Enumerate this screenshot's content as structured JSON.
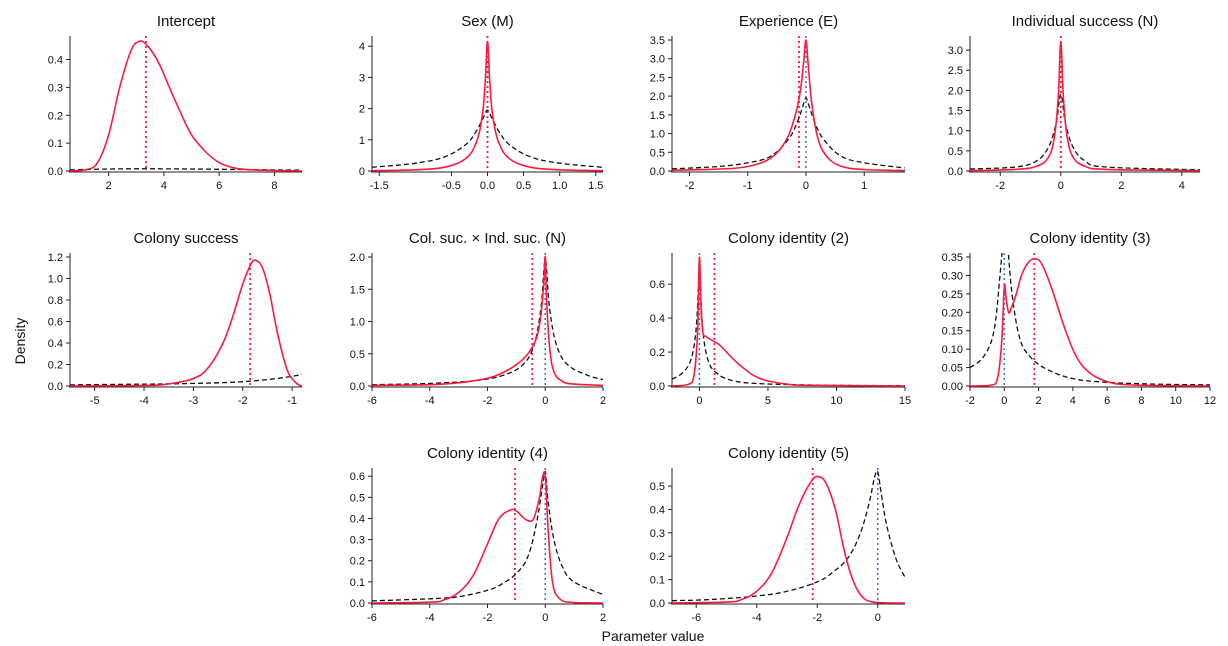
{
  "figure": {
    "ylabel": "Density",
    "xlabel": "Parameter value",
    "colors": {
      "posterior": "#ff1a3d",
      "prior": "#111111",
      "posterior_mean": "#ff1a3d",
      "zero_line": "#4a6fd1"
    }
  },
  "chart_data": [
    {
      "type": "line",
      "title": "Intercept",
      "xlim": [
        0.6,
        9.0
      ],
      "ylim": [
        0,
        0.47
      ],
      "xticks": [
        2,
        4,
        6,
        8
      ],
      "yticks": [
        0.0,
        0.1,
        0.2,
        0.3,
        0.4
      ],
      "xtick_labels": [
        "2",
        "4",
        "6",
        "8"
      ],
      "ytick_labels": [
        "0.0",
        "0.1",
        "0.2",
        "0.3",
        "0.4"
      ],
      "posterior_mean": 3.35,
      "zero_line": null,
      "series": [
        {
          "style": "solid",
          "color": "#ff1a3d",
          "x": [
            0.6,
            1.2,
            1.6,
            2.0,
            2.4,
            2.8,
            3.1,
            3.4,
            3.8,
            4.2,
            4.6,
            5.0,
            5.5,
            6.0,
            6.5,
            7.0,
            8.0,
            9.0
          ],
          "y": [
            0.0,
            0.005,
            0.03,
            0.13,
            0.3,
            0.43,
            0.465,
            0.45,
            0.39,
            0.3,
            0.21,
            0.13,
            0.07,
            0.03,
            0.012,
            0.005,
            0.002,
            0.0
          ]
        },
        {
          "style": "dashed",
          "color": "#111111",
          "x": [
            0.6,
            2.0,
            3.3,
            5.0,
            7.0,
            9.0
          ],
          "y": [
            0.004,
            0.007,
            0.008,
            0.007,
            0.005,
            0.003
          ]
        }
      ]
    },
    {
      "type": "line",
      "title": "Sex (M)",
      "xlim": [
        -1.6,
        1.6
      ],
      "ylim": [
        0,
        4.2
      ],
      "xticks": [
        -1.5,
        -0.5,
        0,
        0.5,
        1.0,
        1.5
      ],
      "yticks": [
        0,
        1,
        2,
        3,
        4
      ],
      "xtick_labels": [
        "-1.5",
        "-0.5",
        "0.0",
        "0.5",
        "1.0",
        "1.5"
      ],
      "ytick_labels": [
        "0",
        "1",
        "2",
        "3",
        "4"
      ],
      "posterior_mean": 0.0,
      "zero_line": 0.0,
      "series": [
        {
          "style": "solid",
          "color": "#ff1a3d",
          "x": [
            -1.6,
            -1.0,
            -0.6,
            -0.3,
            -0.15,
            -0.07,
            -0.03,
            0,
            0.03,
            0.07,
            0.15,
            0.3,
            0.6,
            1.0,
            1.6
          ],
          "y": [
            0.01,
            0.04,
            0.12,
            0.4,
            0.95,
            1.8,
            2.9,
            4.15,
            2.9,
            1.8,
            0.95,
            0.4,
            0.12,
            0.04,
            0.01
          ]
        },
        {
          "style": "dashed",
          "color": "#111111",
          "x": [
            -1.6,
            -1.0,
            -0.6,
            -0.3,
            -0.15,
            -0.05,
            0,
            0.05,
            0.15,
            0.3,
            0.6,
            1.0,
            1.6
          ],
          "y": [
            0.12,
            0.25,
            0.45,
            0.85,
            1.3,
            1.75,
            1.95,
            1.75,
            1.3,
            0.85,
            0.45,
            0.25,
            0.12
          ]
        }
      ]
    },
    {
      "type": "line",
      "title": "Experience (E)",
      "xlim": [
        -2.3,
        1.7
      ],
      "ylim": [
        0,
        3.5
      ],
      "xticks": [
        -2,
        -1,
        0,
        1
      ],
      "yticks": [
        0.0,
        0.5,
        1.0,
        1.5,
        2.0,
        2.5,
        3.0,
        3.5
      ],
      "xtick_labels": [
        "-2",
        "-1",
        "0",
        "1"
      ],
      "ytick_labels": [
        "0.0",
        "0.5",
        "1.0",
        "1.5",
        "2.0",
        "2.5",
        "3.0",
        "3.5"
      ],
      "posterior_mean": -0.12,
      "zero_line": 0.0,
      "series": [
        {
          "style": "solid",
          "color": "#ff1a3d",
          "x": [
            -2.3,
            -1.5,
            -1.0,
            -0.6,
            -0.35,
            -0.2,
            -0.1,
            -0.04,
            0,
            0.04,
            0.1,
            0.2,
            0.35,
            0.6,
            1.0,
            1.7
          ],
          "y": [
            0.02,
            0.05,
            0.12,
            0.35,
            0.8,
            1.4,
            2.1,
            2.9,
            3.5,
            2.8,
            1.8,
            0.9,
            0.4,
            0.13,
            0.04,
            0.01
          ]
        },
        {
          "style": "dashed",
          "color": "#111111",
          "x": [
            -2.3,
            -1.5,
            -1.0,
            -0.6,
            -0.3,
            -0.15,
            -0.05,
            0,
            0.05,
            0.15,
            0.3,
            0.6,
            1.0,
            1.7
          ],
          "y": [
            0.06,
            0.12,
            0.22,
            0.4,
            0.85,
            1.3,
            1.75,
            1.95,
            1.75,
            1.3,
            0.85,
            0.4,
            0.22,
            0.08
          ]
        }
      ]
    },
    {
      "type": "line",
      "title": "Individual success (N)",
      "xlim": [
        -3.0,
        4.6
      ],
      "ylim": [
        0,
        3.25
      ],
      "xticks": [
        -2,
        0,
        2,
        4
      ],
      "yticks": [
        0.0,
        0.5,
        1.0,
        1.5,
        2.0,
        2.5,
        3.0
      ],
      "xtick_labels": [
        "-2",
        "0",
        "2",
        "4"
      ],
      "ytick_labels": [
        "0.0",
        "0.5",
        "1.0",
        "1.5",
        "2.0",
        "2.5",
        "3.0"
      ],
      "posterior_mean": 0.0,
      "zero_line": 0.0,
      "series": [
        {
          "style": "solid",
          "color": "#ff1a3d",
          "x": [
            -3.0,
            -1.5,
            -0.8,
            -0.4,
            -0.2,
            -0.08,
            0,
            0.08,
            0.2,
            0.4,
            0.8,
            1.5,
            4.6
          ],
          "y": [
            0.01,
            0.04,
            0.12,
            0.35,
            0.9,
            1.9,
            3.2,
            1.9,
            0.9,
            0.35,
            0.12,
            0.04,
            0.01
          ]
        },
        {
          "style": "dashed",
          "color": "#111111",
          "x": [
            -3.0,
            -1.5,
            -0.8,
            -0.4,
            -0.15,
            0,
            0.15,
            0.4,
            0.8,
            1.5,
            4.6
          ],
          "y": [
            0.05,
            0.1,
            0.25,
            0.6,
            1.2,
            1.9,
            1.2,
            0.6,
            0.25,
            0.1,
            0.03
          ]
        }
      ]
    },
    {
      "type": "line",
      "title": "Colony success",
      "xlim": [
        -5.5,
        -0.8
      ],
      "ylim": [
        0,
        1.2
      ],
      "xticks": [
        -5,
        -4,
        -3,
        -2,
        -1
      ],
      "yticks": [
        0.0,
        0.2,
        0.4,
        0.6,
        0.8,
        1.0,
        1.2
      ],
      "xtick_labels": [
        "-5",
        "-4",
        "-3",
        "-2",
        "-1"
      ],
      "ytick_labels": [
        "0.0",
        "0.2",
        "0.4",
        "0.6",
        "0.8",
        "1.0",
        "1.2"
      ],
      "posterior_mean": -1.85,
      "zero_line": null,
      "series": [
        {
          "style": "solid",
          "color": "#ff1a3d",
          "x": [
            -5.5,
            -4.0,
            -3.5,
            -3.0,
            -2.7,
            -2.4,
            -2.2,
            -2.0,
            -1.85,
            -1.75,
            -1.6,
            -1.45,
            -1.3,
            -1.1,
            -0.9,
            -0.8
          ],
          "y": [
            0.0,
            0.005,
            0.02,
            0.07,
            0.17,
            0.4,
            0.65,
            0.95,
            1.12,
            1.17,
            1.1,
            0.85,
            0.5,
            0.15,
            0.02,
            0.0
          ]
        },
        {
          "style": "dashed",
          "color": "#111111",
          "x": [
            -5.5,
            -4.5,
            -3.5,
            -2.5,
            -2.0,
            -1.5,
            -1.0,
            -0.8
          ],
          "y": [
            0.01,
            0.015,
            0.02,
            0.03,
            0.04,
            0.06,
            0.09,
            0.11
          ]
        }
      ]
    },
    {
      "type": "line",
      "title": "Col. suc. × Ind. suc. (N)",
      "xlim": [
        -6.0,
        2.0
      ],
      "ylim": [
        0,
        2.0
      ],
      "xticks": [
        -6,
        -4,
        -2,
        0,
        2
      ],
      "yticks": [
        0.0,
        0.5,
        1.0,
        1.5,
        2.0
      ],
      "xtick_labels": [
        "-6",
        "-4",
        "-2",
        "0",
        "2"
      ],
      "ytick_labels": [
        "0.0",
        "0.5",
        "1.0",
        "1.5",
        "2.0"
      ],
      "posterior_mean": -0.45,
      "zero_line": 0.0,
      "series": [
        {
          "style": "solid",
          "color": "#ff1a3d",
          "x": [
            -6.0,
            -4.0,
            -3.0,
            -2.0,
            -1.5,
            -1.0,
            -0.6,
            -0.3,
            -0.15,
            -0.05,
            0,
            0.05,
            0.15,
            0.3,
            0.6,
            1.0,
            2.0
          ],
          "y": [
            0.01,
            0.02,
            0.05,
            0.12,
            0.2,
            0.33,
            0.5,
            0.75,
            1.1,
            1.6,
            2.0,
            1.3,
            0.6,
            0.22,
            0.07,
            0.03,
            0.01
          ]
        },
        {
          "style": "dashed",
          "color": "#111111",
          "x": [
            -6.0,
            -4.0,
            -2.5,
            -1.5,
            -0.8,
            -0.4,
            -0.15,
            0,
            0.15,
            0.4,
            0.8,
            1.5,
            2.0
          ],
          "y": [
            0.02,
            0.04,
            0.08,
            0.16,
            0.32,
            0.62,
            1.2,
            1.95,
            1.2,
            0.62,
            0.32,
            0.16,
            0.1
          ]
        }
      ]
    },
    {
      "type": "line",
      "title": "Colony identity (2)",
      "xlim": [
        -2.0,
        15.0
      ],
      "ylim": [
        0,
        0.76
      ],
      "xticks": [
        0,
        5,
        10,
        15
      ],
      "yticks": [
        0.0,
        0.2,
        0.4,
        0.6
      ],
      "xtick_labels": [
        "0",
        "5",
        "10",
        "15"
      ],
      "ytick_labels": [
        "0.0",
        "0.2",
        "0.4",
        "0.6"
      ],
      "posterior_mean": 1.1,
      "zero_line": 0.0,
      "series": [
        {
          "style": "solid",
          "color": "#ff1a3d",
          "x": [
            -2.0,
            -0.8,
            -0.4,
            -0.15,
            0,
            0.1,
            0.25,
            0.5,
            0.9,
            1.5,
            2.2,
            3.0,
            4.0,
            5.0,
            6.5,
            8.0,
            15.0
          ],
          "y": [
            0.0,
            0.01,
            0.06,
            0.3,
            0.75,
            0.5,
            0.32,
            0.29,
            0.27,
            0.24,
            0.18,
            0.12,
            0.06,
            0.03,
            0.01,
            0.004,
            0.0
          ]
        },
        {
          "style": "dashed",
          "color": "#111111",
          "x": [
            -2.0,
            -1.2,
            -0.6,
            -0.25,
            -0.08,
            0,
            0.08,
            0.25,
            0.6,
            1.2,
            2.5,
            5.0,
            10.0,
            15.0
          ],
          "y": [
            0.04,
            0.08,
            0.16,
            0.33,
            0.58,
            0.76,
            0.58,
            0.33,
            0.16,
            0.08,
            0.03,
            0.012,
            0.004,
            0.002
          ]
        }
      ]
    },
    {
      "type": "line",
      "title": "Colony identity (3)",
      "xlim": [
        -2.0,
        12.0
      ],
      "ylim": [
        0,
        0.35
      ],
      "xticks": [
        -2,
        0,
        2,
        4,
        6,
        8,
        10,
        12
      ],
      "yticks": [
        0.0,
        0.05,
        0.1,
        0.15,
        0.2,
        0.25,
        0.3,
        0.35
      ],
      "xtick_labels": [
        "-2",
        "0",
        "2",
        "4",
        "6",
        "8",
        "10",
        "12"
      ],
      "ytick_labels": [
        "0.00",
        "0.05",
        "0.10",
        "0.15",
        "0.20",
        "0.25",
        "0.30",
        "0.35"
      ],
      "posterior_mean": 1.75,
      "zero_line": 0.0,
      "series": [
        {
          "style": "solid",
          "color": "#ff1a3d",
          "x": [
            -2.0,
            -0.8,
            -0.4,
            -0.15,
            0,
            0.1,
            0.25,
            0.4,
            0.7,
            1.0,
            1.4,
            1.8,
            2.2,
            2.8,
            3.5,
            4.2,
            5.0,
            6.0,
            7.0,
            9.0,
            12.0
          ],
          "y": [
            0.0,
            0.002,
            0.02,
            0.12,
            0.27,
            0.24,
            0.2,
            0.21,
            0.25,
            0.3,
            0.335,
            0.345,
            0.33,
            0.26,
            0.16,
            0.08,
            0.035,
            0.012,
            0.004,
            0.001,
            0.0
          ]
        },
        {
          "style": "dashed",
          "color": "#111111",
          "x": [
            -2.0,
            -1.2,
            -0.6,
            -0.25,
            -0.05,
            0.15,
            0.45,
            0.9,
            1.5,
            2.5,
            4.0,
            6.0,
            9.0,
            12.0
          ],
          "y": [
            0.05,
            0.08,
            0.15,
            0.3,
            0.4,
            0.4,
            0.25,
            0.13,
            0.08,
            0.045,
            0.02,
            0.01,
            0.005,
            0.003
          ]
        }
      ]
    },
    {
      "type": "line",
      "title": "Colony identity (4)",
      "xlim": [
        -6.0,
        2.0
      ],
      "ylim": [
        0,
        0.62
      ],
      "xticks": [
        -6,
        -4,
        -2,
        0,
        2
      ],
      "yticks": [
        0.0,
        0.1,
        0.2,
        0.3,
        0.4,
        0.5,
        0.6
      ],
      "xtick_labels": [
        "-6",
        "-4",
        "-2",
        "0",
        "2"
      ],
      "ytick_labels": [
        "0.0",
        "0.1",
        "0.2",
        "0.3",
        "0.4",
        "0.5",
        "0.6"
      ],
      "posterior_mean": -1.05,
      "zero_line": 0.0,
      "series": [
        {
          "style": "solid",
          "color": "#ff1a3d",
          "x": [
            -6.0,
            -4.0,
            -3.5,
            -3.0,
            -2.5,
            -2.0,
            -1.6,
            -1.2,
            -1.0,
            -0.8,
            -0.6,
            -0.4,
            -0.2,
            -0.1,
            0,
            0.1,
            0.25,
            0.5,
            1.0,
            2.0
          ],
          "y": [
            0.0,
            0.004,
            0.015,
            0.05,
            0.13,
            0.28,
            0.4,
            0.44,
            0.435,
            0.41,
            0.39,
            0.4,
            0.5,
            0.59,
            0.6,
            0.35,
            0.1,
            0.02,
            0.002,
            0.0
          ]
        },
        {
          "style": "dashed",
          "color": "#111111",
          "x": [
            -6.0,
            -4.0,
            -3.0,
            -2.0,
            -1.5,
            -1.0,
            -0.6,
            -0.3,
            -0.1,
            0,
            0.1,
            0.3,
            0.6,
            1.0,
            2.0
          ],
          "y": [
            0.01,
            0.02,
            0.03,
            0.06,
            0.09,
            0.14,
            0.22,
            0.38,
            0.55,
            0.62,
            0.48,
            0.3,
            0.17,
            0.1,
            0.04
          ]
        }
      ]
    },
    {
      "type": "line",
      "title": "Colony identity (5)",
      "xlim": [
        -6.8,
        0.9
      ],
      "ylim": [
        0,
        0.56
      ],
      "xticks": [
        -6,
        -4,
        -2,
        0
      ],
      "yticks": [
        0.0,
        0.1,
        0.2,
        0.3,
        0.4,
        0.5
      ],
      "xtick_labels": [
        "-6",
        "-4",
        "-2",
        "0"
      ],
      "ytick_labels": [
        "0.0",
        "0.1",
        "0.2",
        "0.3",
        "0.4",
        "0.5"
      ],
      "posterior_mean": -2.15,
      "zero_line": 0.0,
      "series": [
        {
          "style": "solid",
          "color": "#ff1a3d",
          "x": [
            -6.8,
            -5.0,
            -4.5,
            -4.0,
            -3.5,
            -3.0,
            -2.6,
            -2.2,
            -1.95,
            -1.7,
            -1.4,
            -1.1,
            -0.8,
            -0.5,
            -0.2,
            0.2,
            0.9
          ],
          "y": [
            0.0,
            0.004,
            0.015,
            0.05,
            0.13,
            0.28,
            0.42,
            0.52,
            0.54,
            0.51,
            0.4,
            0.22,
            0.09,
            0.025,
            0.005,
            0.001,
            0.0
          ]
        },
        {
          "style": "dashed",
          "color": "#111111",
          "x": [
            -6.8,
            -5.5,
            -4.0,
            -3.0,
            -2.0,
            -1.5,
            -1.0,
            -0.6,
            -0.3,
            -0.1,
            0,
            0.1,
            0.3,
            0.6,
            0.9
          ],
          "y": [
            0.01,
            0.015,
            0.03,
            0.05,
            0.09,
            0.13,
            0.19,
            0.29,
            0.42,
            0.54,
            0.56,
            0.48,
            0.33,
            0.19,
            0.11
          ]
        }
      ]
    }
  ]
}
